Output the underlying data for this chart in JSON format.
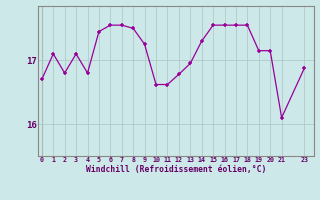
{
  "x": [
    0,
    1,
    2,
    3,
    4,
    5,
    6,
    7,
    8,
    9,
    10,
    11,
    12,
    13,
    14,
    15,
    16,
    17,
    18,
    19,
    20,
    21,
    23
  ],
  "y": [
    16.7,
    17.1,
    16.8,
    17.1,
    16.8,
    17.45,
    17.55,
    17.55,
    17.5,
    17.25,
    16.62,
    16.62,
    16.78,
    16.95,
    17.3,
    17.55,
    17.55,
    17.55,
    17.55,
    17.15,
    17.15,
    16.1,
    16.88
  ],
  "xlabel": "Windchill (Refroidissement éolien,°C)",
  "xticks": [
    0,
    1,
    2,
    3,
    4,
    5,
    6,
    7,
    8,
    9,
    10,
    11,
    12,
    13,
    14,
    15,
    16,
    17,
    18,
    19,
    20,
    21,
    23
  ],
  "yticks": [
    16,
    17
  ],
  "ylim": [
    15.5,
    17.85
  ],
  "xlim": [
    -0.3,
    23.8
  ],
  "line_color": "#990099",
  "marker": "+",
  "bg_color": "#cce8e8",
  "grid_color": "#b0c8c8",
  "tick_color": "#660066",
  "xlabel_color": "#660066",
  "spine_color": "#888888"
}
